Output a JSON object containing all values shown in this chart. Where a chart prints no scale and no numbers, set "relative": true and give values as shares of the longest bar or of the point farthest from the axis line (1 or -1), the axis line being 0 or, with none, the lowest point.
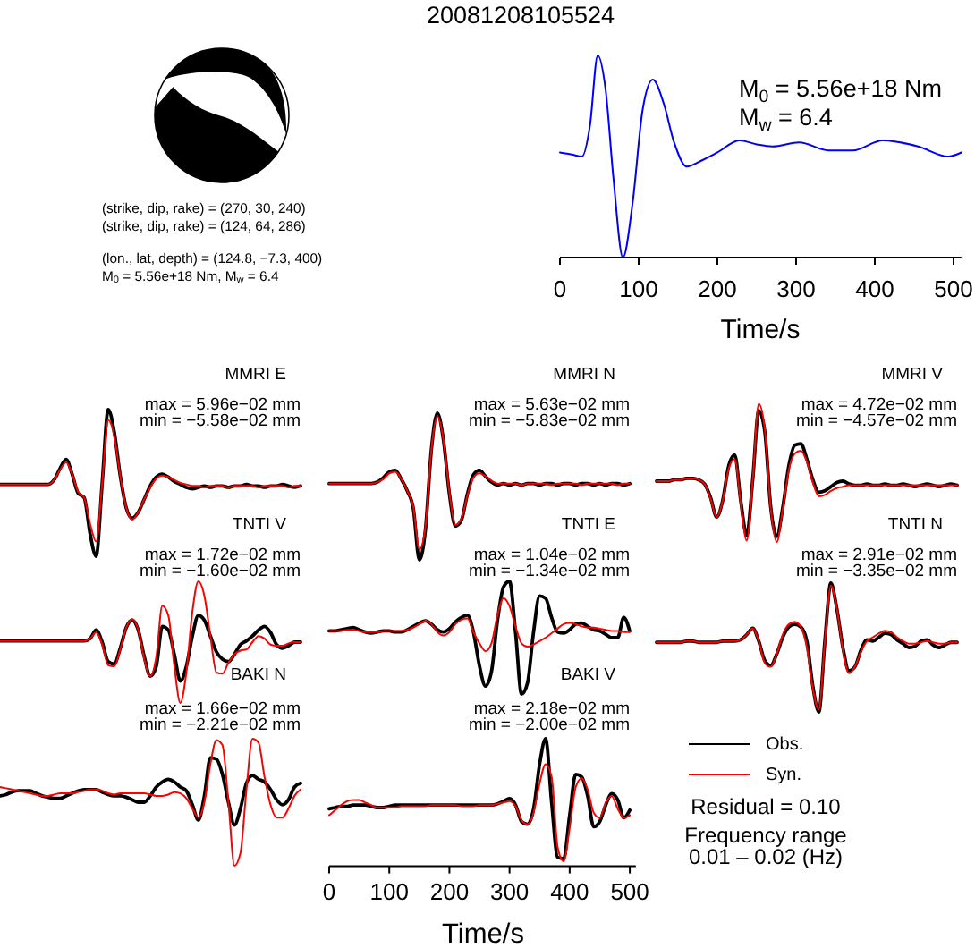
{
  "chart_data": [
    {
      "type": "other",
      "title": "20081208105524",
      "annotations": [
        "(strike, dip, rake) = (270, 30, 240)",
        "(strike, dip, rake) = (124, 64, 286)",
        "(lon., lat, depth) = (124.8, −7.3, 400)",
        "M$_{0}$ = 5.56e+18 Nm, M$_{w}$ = 6.4"
      ]
    },
    {
      "type": "line",
      "relative": true,
      "x": [
        0,
        15,
        28,
        38,
        48,
        58,
        68,
        80,
        92,
        105,
        118,
        132,
        145,
        161,
        180,
        200,
        228,
        250,
        270,
        304,
        341,
        372,
        410,
        455,
        493,
        510
      ],
      "series": [
        {
          "color": "#0000ff",
          "values": [
            0.52,
            0.51,
            0.5,
            0.65,
            1.0,
            0.83,
            0.39,
            0,
            0.26,
            0.73,
            0.88,
            0.76,
            0.57,
            0.45,
            0.48,
            0.52,
            0.58,
            0.56,
            0.55,
            0.57,
            0.53,
            0.53,
            0.58,
            0.55,
            0.5,
            0.52
          ]
        }
      ],
      "xlim": [
        0,
        510
      ],
      "xticks": [
        0,
        100,
        200,
        300,
        400,
        500
      ],
      "xlabel": "Time/s",
      "annotations": [
        "M$_{0}$ = 5.56e+18 Nm",
        "M$_{w}$ = 6.4"
      ]
    },
    {
      "type": "line",
      "title": "MMRI E",
      "relative": true,
      "categories": [
        null,
        null,
        null,
        null,
        null,
        null,
        null,
        null,
        null,
        null,
        null,
        null,
        null,
        null,
        null,
        null,
        null,
        null,
        null,
        null,
        null,
        null,
        null,
        null,
        null,
        null,
        null,
        null,
        null,
        null,
        null,
        null,
        null,
        null,
        null,
        null,
        null,
        null,
        null,
        null,
        null,
        null,
        null,
        null,
        null,
        null,
        null,
        null,
        null,
        null,
        null
      ],
      "annotations": [
        "max = 5.96e−02 mm",
        "min = −5.58e−02 mm"
      ],
      "series": [
        {
          "color": "#000000",
          "values": [
            0.49,
            0.49,
            0.49,
            0.49,
            0.49,
            0.49,
            0.49,
            0.49,
            0.49,
            0.52,
            0.6,
            0.66,
            0.56,
            0.43,
            0.4,
            0.15,
            0,
            0.5,
            1.0,
            0.85,
            0.55,
            0.33,
            0.26,
            0.3,
            0.39,
            0.48,
            0.54,
            0.56,
            0.54,
            0.51,
            0.49,
            0.47,
            0.46,
            0.47,
            0.48,
            0.47,
            0.48,
            0.48,
            0.47,
            0.48,
            0.48,
            0.49,
            0.48,
            0.48,
            0.47,
            0.48,
            0.48,
            0.49,
            0.48,
            0.47,
            0.48
          ]
        },
        {
          "color": "#ff0000",
          "values": [
            0.49,
            0.49,
            0.49,
            0.49,
            0.49,
            0.49,
            0.49,
            0.49,
            0.49,
            0.52,
            0.59,
            0.64,
            0.56,
            0.44,
            0.4,
            0.22,
            0.1,
            0.5,
            0.93,
            0.82,
            0.55,
            0.33,
            0.25,
            0.3,
            0.39,
            0.47,
            0.53,
            0.55,
            0.54,
            0.52,
            0.5,
            0.49,
            0.48,
            0.48,
            0.47,
            0.48,
            0.48,
            0.48,
            0.47,
            0.48,
            0.48,
            0.48,
            0.48,
            0.47,
            0.48,
            0.48,
            0.48,
            0.48,
            0.47,
            0.48,
            0.48
          ]
        }
      ]
    },
    {
      "type": "line",
      "title": "MMRI N",
      "relative": true,
      "categories": [
        null,
        null,
        null,
        null,
        null,
        null,
        null,
        null,
        null,
        null,
        null,
        null,
        null,
        null,
        null,
        null,
        null,
        null,
        null,
        null,
        null,
        null,
        null,
        null,
        null,
        null,
        null,
        null,
        null,
        null,
        null,
        null,
        null,
        null,
        null,
        null,
        null,
        null,
        null,
        null,
        null,
        null,
        null,
        null,
        null,
        null,
        null,
        null,
        null,
        null,
        null
      ],
      "annotations": [
        "max = 5.63e−02 mm",
        "min = −5.83e−02 mm"
      ],
      "series": [
        {
          "color": "#000000",
          "values": [
            0.52,
            0.52,
            0.52,
            0.52,
            0.52,
            0.52,
            0.52,
            0.52,
            0.53,
            0.56,
            0.6,
            0.61,
            0.55,
            0.47,
            0.35,
            0,
            0.2,
            0.75,
            1.0,
            0.82,
            0.45,
            0.23,
            0.27,
            0.45,
            0.58,
            0.61,
            0.57,
            0.53,
            0.51,
            0.52,
            0.51,
            0.52,
            0.51,
            0.52,
            0.52,
            0.51,
            0.52,
            0.52,
            0.51,
            0.52,
            0.52,
            0.51,
            0.52,
            0.52,
            0.51,
            0.52,
            0.51,
            0.52,
            0.52,
            0.51,
            0.52
          ]
        },
        {
          "color": "#ff0000",
          "values": [
            0.52,
            0.52,
            0.52,
            0.52,
            0.52,
            0.52,
            0.52,
            0.52,
            0.53,
            0.55,
            0.59,
            0.6,
            0.55,
            0.47,
            0.36,
            0.07,
            0.22,
            0.75,
            0.98,
            0.82,
            0.46,
            0.24,
            0.28,
            0.44,
            0.56,
            0.59,
            0.57,
            0.54,
            0.52,
            0.52,
            0.52,
            0.52,
            0.51,
            0.52,
            0.52,
            0.52,
            0.52,
            0.51,
            0.52,
            0.52,
            0.52,
            0.52,
            0.51,
            0.52,
            0.52,
            0.52,
            0.52,
            0.52,
            0.51,
            0.52,
            0.52
          ]
        }
      ]
    },
    {
      "type": "line",
      "title": "MMRI V",
      "relative": true,
      "categories": [
        null,
        null,
        null,
        null,
        null,
        null,
        null,
        null,
        null,
        null,
        null,
        null,
        null,
        null,
        null,
        null,
        null,
        null,
        null,
        null,
        null,
        null,
        null,
        null,
        null,
        null,
        null,
        null,
        null,
        null,
        null,
        null,
        null,
        null,
        null,
        null,
        null,
        null,
        null,
        null,
        null,
        null,
        null,
        null,
        null,
        null,
        null,
        null,
        null,
        null,
        null
      ],
      "annotations": [
        "max = 4.72e−02 mm",
        "min = −4.57e−02 mm"
      ],
      "series": [
        {
          "color": "#000000",
          "values": [
            0.44,
            0.44,
            0.44,
            0.45,
            0.45,
            0.46,
            0.46,
            0.45,
            0.42,
            0.32,
            0.18,
            0.3,
            0.55,
            0.63,
            0.3,
            0.05,
            0.45,
            0.95,
            0.8,
            0.25,
            0.04,
            0.25,
            0.55,
            0.7,
            0.71,
            0.6,
            0.45,
            0.36,
            0.37,
            0.4,
            0.43,
            0.44,
            0.42,
            0.41,
            0.41,
            0.42,
            0.41,
            0.41,
            0.42,
            0.41,
            0.41,
            0.42,
            0.41,
            0.4,
            0.41,
            0.42,
            0.41,
            0.4,
            0.41,
            0.42,
            0.41
          ]
        },
        {
          "color": "#ff0000",
          "values": [
            0.44,
            0.44,
            0.44,
            0.45,
            0.45,
            0.46,
            0.46,
            0.45,
            0.42,
            0.31,
            0.18,
            0.3,
            0.53,
            0.6,
            0.28,
            0.01,
            0.45,
            1.0,
            0.82,
            0.24,
            0,
            0.24,
            0.52,
            0.64,
            0.66,
            0.58,
            0.43,
            0.33,
            0.34,
            0.37,
            0.39,
            0.4,
            0.41,
            0.41,
            0.41,
            0.41,
            0.41,
            0.41,
            0.41,
            0.41,
            0.41,
            0.41,
            0.41,
            0.41,
            0.41,
            0.41,
            0.41,
            0.41,
            0.41,
            0.41,
            0.41
          ]
        }
      ]
    },
    {
      "type": "line",
      "title": "TNTI V",
      "relative": true,
      "categories": [
        null,
        null,
        null,
        null,
        null,
        null,
        null,
        null,
        null,
        null,
        null,
        null,
        null,
        null,
        null,
        null,
        null,
        null,
        null,
        null,
        null,
        null,
        null,
        null,
        null,
        null,
        null,
        null,
        null,
        null,
        null,
        null,
        null,
        null,
        null,
        null,
        null,
        null,
        null,
        null,
        null,
        null,
        null,
        null,
        null,
        null,
        null,
        null,
        null,
        null,
        null
      ],
      "annotations": [
        "max = 1.72e−02 mm",
        "min = −1.60e−02 mm"
      ],
      "series": [
        {
          "color": "#000000",
          "values": [
            0.51,
            0.51,
            0.51,
            0.51,
            0.51,
            0.51,
            0.51,
            0.51,
            0.51,
            0.51,
            0.51,
            0.51,
            0.51,
            0.51,
            0.51,
            0.53,
            0.6,
            0.5,
            0.34,
            0.32,
            0.45,
            0.62,
            0.68,
            0.6,
            0.38,
            0.22,
            0.3,
            0.63,
            0.6,
            0.4,
            0.18,
            0.3,
            0.55,
            0.72,
            0.68,
            0.55,
            0.42,
            0.36,
            0.34,
            0.4,
            0.48,
            0.51,
            0.55,
            0.6,
            0.63,
            0.58,
            0.48,
            0.45,
            0.47,
            0.5,
            0.5
          ]
        },
        {
          "color": "#ff0000",
          "values": [
            0.51,
            0.51,
            0.51,
            0.51,
            0.51,
            0.51,
            0.51,
            0.51,
            0.51,
            0.51,
            0.51,
            0.51,
            0.51,
            0.51,
            0.51,
            0.53,
            0.58,
            0.48,
            0.31,
            0.3,
            0.44,
            0.62,
            0.69,
            0.6,
            0.36,
            0.22,
            0.38,
            0.8,
            0.72,
            0.3,
            0,
            0.25,
            0.75,
            1.0,
            0.88,
            0.55,
            0.25,
            0.24,
            0.33,
            0.4,
            0.43,
            0.44,
            0.5,
            0.55,
            0.53,
            0.48,
            0.47,
            0.47,
            0.49,
            0.5,
            0.5
          ]
        }
      ]
    },
    {
      "type": "line",
      "title": "TNTI E",
      "relative": true,
      "categories": [
        null,
        null,
        null,
        null,
        null,
        null,
        null,
        null,
        null,
        null,
        null,
        null,
        null,
        null,
        null,
        null,
        null,
        null,
        null,
        null,
        null,
        null,
        null,
        null,
        null,
        null,
        null,
        null,
        null,
        null,
        null,
        null,
        null,
        null,
        null,
        null,
        null,
        null,
        null,
        null,
        null,
        null,
        null,
        null,
        null,
        null,
        null,
        null,
        null,
        null,
        null
      ],
      "annotations": [
        "max = 1.04e−02 mm",
        "min = −1.34e−02 mm"
      ],
      "series": [
        {
          "color": "#000000",
          "values": [
            0.56,
            0.56,
            0.57,
            0.58,
            0.59,
            0.57,
            0.55,
            0.54,
            0.55,
            0.56,
            0.56,
            0.55,
            0.55,
            0.57,
            0.6,
            0.63,
            0.65,
            0.62,
            0.57,
            0.55,
            0.58,
            0.64,
            0.68,
            0.7,
            0.55,
            0.25,
            0.07,
            0.2,
            0.65,
            0.95,
            1.0,
            0.55,
            0,
            0.1,
            0.55,
            0.87,
            0.85,
            0.68,
            0.55,
            0.54,
            0.57,
            0.62,
            0.63,
            0.6,
            0.57,
            0.56,
            0.53,
            0.5,
            0.5,
            0.68,
            0.56
          ]
        },
        {
          "color": "#ff0000",
          "values": [
            0.56,
            0.56,
            0.56,
            0.57,
            0.57,
            0.56,
            0.55,
            0.55,
            0.55,
            0.56,
            0.56,
            0.56,
            0.56,
            0.57,
            0.59,
            0.62,
            0.65,
            0.62,
            0.55,
            0.52,
            0.55,
            0.62,
            0.66,
            0.67,
            0.55,
            0.45,
            0.38,
            0.45,
            0.7,
            0.85,
            0.78,
            0.6,
            0.45,
            0.42,
            0.44,
            0.47,
            0.5,
            0.54,
            0.58,
            0.62,
            0.63,
            0.62,
            0.6,
            0.59,
            0.59,
            0.58,
            0.57,
            0.56,
            0.56,
            0.55,
            0.55
          ]
        }
      ]
    },
    {
      "type": "line",
      "title": "TNTI N",
      "relative": true,
      "categories": [
        null,
        null,
        null,
        null,
        null,
        null,
        null,
        null,
        null,
        null,
        null,
        null,
        null,
        null,
        null,
        null,
        null,
        null,
        null,
        null,
        null,
        null,
        null,
        null,
        null,
        null,
        null,
        null,
        null,
        null,
        null,
        null,
        null,
        null,
        null,
        null,
        null,
        null,
        null,
        null,
        null,
        null,
        null,
        null,
        null,
        null,
        null,
        null,
        null,
        null,
        null
      ],
      "annotations": [
        "max = 2.91e−02 mm",
        "min = −3.35e−02 mm"
      ],
      "series": [
        {
          "color": "#000000",
          "values": [
            0.54,
            0.54,
            0.54,
            0.54,
            0.54,
            0.55,
            0.55,
            0.54,
            0.54,
            0.54,
            0.54,
            0.55,
            0.55,
            0.55,
            0.56,
            0.6,
            0.65,
            0.55,
            0.4,
            0.36,
            0.45,
            0.58,
            0.66,
            0.68,
            0.66,
            0.55,
            0.2,
            0,
            0.55,
            1.0,
            0.8,
            0.5,
            0.32,
            0.35,
            0.48,
            0.56,
            0.55,
            0.58,
            0.61,
            0.6,
            0.56,
            0.53,
            0.5,
            0.51,
            0.55,
            0.56,
            0.52,
            0.5,
            0.52,
            0.54,
            0.54
          ]
        },
        {
          "color": "#ff0000",
          "values": [
            0.54,
            0.54,
            0.54,
            0.54,
            0.54,
            0.55,
            0.55,
            0.54,
            0.54,
            0.54,
            0.54,
            0.55,
            0.55,
            0.55,
            0.56,
            0.6,
            0.65,
            0.55,
            0.38,
            0.35,
            0.45,
            0.6,
            0.68,
            0.7,
            0.66,
            0.5,
            0.18,
            0.02,
            0.55,
            0.98,
            0.8,
            0.48,
            0.3,
            0.35,
            0.47,
            0.55,
            0.58,
            0.61,
            0.63,
            0.62,
            0.58,
            0.55,
            0.53,
            0.53,
            0.54,
            0.55,
            0.54,
            0.53,
            0.53,
            0.54,
            0.54
          ]
        }
      ]
    },
    {
      "type": "line",
      "title": "BAKI N",
      "relative": true,
      "categories": [
        null,
        null,
        null,
        null,
        null,
        null,
        null,
        null,
        null,
        null,
        null,
        null,
        null,
        null,
        null,
        null,
        null,
        null,
        null,
        null,
        null,
        null,
        null,
        null,
        null,
        null,
        null,
        null,
        null,
        null,
        null,
        null,
        null,
        null,
        null,
        null,
        null,
        null,
        null,
        null,
        null,
        null,
        null,
        null,
        null,
        null,
        null,
        null,
        null,
        null,
        null
      ],
      "annotations": [
        "max = 1.66e−02 mm",
        "min = −2.21e−02 mm"
      ],
      "series": [
        {
          "color": "#000000",
          "values": [
            0.55,
            0.56,
            0.58,
            0.59,
            0.59,
            0.59,
            0.57,
            0.55,
            0.54,
            0.53,
            0.53,
            0.55,
            0.57,
            0.59,
            0.6,
            0.6,
            0.6,
            0.58,
            0.56,
            0.55,
            0.55,
            0.54,
            0.52,
            0.5,
            0.5,
            0.55,
            0.62,
            0.66,
            0.68,
            0.66,
            0.62,
            0.59,
            0.48,
            0.36,
            0.55,
            0.85,
            0.84,
            0.72,
            0.5,
            0.32,
            0.45,
            0.65,
            0.71,
            0.68,
            0.66,
            0.6,
            0.52,
            0.48,
            0.52,
            0.62,
            0.65
          ]
        },
        {
          "color": "#ff0000",
          "values": [
            0.62,
            0.61,
            0.6,
            0.59,
            0.58,
            0.57,
            0.56,
            0.55,
            0.55,
            0.56,
            0.57,
            0.57,
            0.57,
            0.58,
            0.59,
            0.6,
            0.6,
            0.59,
            0.57,
            0.56,
            0.57,
            0.57,
            0.57,
            0.57,
            0.57,
            0.56,
            0.55,
            0.55,
            0.56,
            0.58,
            0.57,
            0.53,
            0.45,
            0.38,
            0.5,
            0.8,
            0.99,
            0.95,
            0.5,
            0,
            0.1,
            0.6,
            1.0,
            0.97,
            0.7,
            0.48,
            0.38,
            0.38,
            0.45,
            0.55,
            0.6
          ]
        }
      ]
    },
    {
      "type": "line",
      "title": "BAKI V",
      "relative": true,
      "x": [
        0,
        10,
        20,
        30,
        40,
        50,
        60,
        70,
        80,
        90,
        100,
        110,
        120,
        130,
        140,
        150,
        160,
        170,
        180,
        190,
        200,
        210,
        220,
        230,
        240,
        250,
        260,
        270,
        280,
        290,
        300,
        310,
        320,
        330,
        340,
        350,
        360,
        370,
        380,
        390,
        400,
        410,
        420,
        430,
        440,
        450,
        460,
        470,
        480,
        490,
        500
      ],
      "xlim": [
        0,
        510
      ],
      "xticks": [
        0,
        100,
        200,
        300,
        400,
        500
      ],
      "xlabel": "Time/s",
      "legend": "right",
      "annotations": [
        "max = 2.18e−02 mm",
        "min = −2.00e−02 mm",
        "Residual = 0.10",
        "Frequency range",
        "0.01 – 0.02 (Hz)"
      ],
      "series": [
        {
          "name": "Obs.",
          "color": "#000000",
          "values": [
            0.45,
            0.46,
            0.47,
            0.47,
            0.48,
            0.48,
            0.48,
            0.47,
            0.46,
            0.46,
            0.47,
            0.48,
            0.48,
            0.48,
            0.48,
            0.48,
            0.48,
            0.48,
            0.48,
            0.48,
            0.48,
            0.48,
            0.48,
            0.48,
            0.48,
            0.48,
            0.48,
            0.48,
            0.49,
            0.51,
            0.53,
            0.48,
            0.35,
            0.33,
            0.45,
            0.8,
            1.0,
            0.5,
            0.07,
            0.06,
            0.4,
            0.72,
            0.7,
            0.55,
            0.31,
            0.35,
            0.48,
            0.57,
            0.52,
            0.38,
            0.44
          ]
        },
        {
          "name": "Syn.",
          "color": "#ff0000",
          "values": [
            0.4,
            0.44,
            0.48,
            0.51,
            0.52,
            0.52,
            0.5,
            0.48,
            0.46,
            0.46,
            0.46,
            0.46,
            0.47,
            0.47,
            0.47,
            0.47,
            0.47,
            0.48,
            0.48,
            0.48,
            0.48,
            0.48,
            0.47,
            0.47,
            0.47,
            0.48,
            0.48,
            0.48,
            0.49,
            0.5,
            0.51,
            0.47,
            0.36,
            0.33,
            0.42,
            0.65,
            0.8,
            0.7,
            0.15,
            0.04,
            0.3,
            0.62,
            0.69,
            0.6,
            0.42,
            0.38,
            0.5,
            0.55,
            0.45,
            0.38,
            0.4
          ]
        }
      ]
    }
  ]
}
